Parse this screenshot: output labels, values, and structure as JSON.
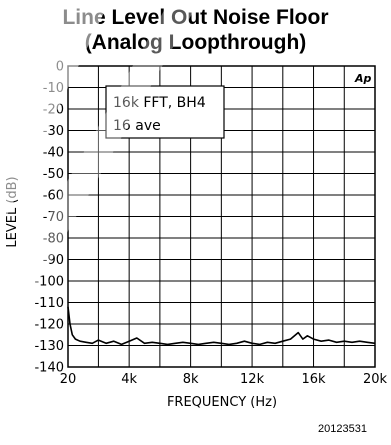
{
  "figure_id": "20123531",
  "chart_data": {
    "type": "line",
    "title": "Line Level Out Noise Floor",
    "subtitle": "(Analog Loopthrough)",
    "xlabel": "FREQUENCY (Hz)",
    "ylabel": "LEVEL (dB)",
    "xlim": [
      20,
      20000
    ],
    "ylim": [
      -140,
      0
    ],
    "x_ticks": [
      20,
      4000,
      8000,
      12000,
      16000,
      20000
    ],
    "x_tick_labels": [
      "20",
      "4k",
      "8k",
      "12k",
      "16k",
      "20k"
    ],
    "y_ticks": [
      0,
      -10,
      -20,
      -30,
      -40,
      -50,
      -60,
      -70,
      -80,
      -90,
      -100,
      -110,
      -120,
      -130,
      -140
    ],
    "y_tick_labels": [
      "0",
      "-10",
      "-20",
      "-30",
      "-40",
      "-50",
      "-60",
      "-70",
      "-80",
      "-90",
      "-100",
      "-110",
      "-120",
      "-130",
      "-140"
    ],
    "grid": true,
    "annotation_lines": [
      "16k FFT, BH4",
      "16 ave"
    ],
    "logo": "Ap",
    "line_color": "#000000",
    "series": [
      {
        "x": [
          20,
          150,
          300,
          500,
          800,
          1200,
          1600,
          2000,
          2500,
          3000,
          3500,
          4000,
          4500,
          5000,
          5500,
          6000,
          6500,
          7000,
          7500,
          8000,
          8500,
          9000,
          9500,
          10000,
          10500,
          11000,
          11500,
          12000,
          12500,
          13000,
          13500,
          14000,
          14500,
          15000,
          15300,
          15600,
          16000,
          16500,
          17000,
          17500,
          18000,
          18500,
          19000,
          19500,
          20000
        ],
        "y": [
          -112,
          -120,
          -125,
          -127,
          -128,
          -128.5,
          -129,
          -127.5,
          -129,
          -128,
          -129.5,
          -128,
          -126.5,
          -129,
          -128.5,
          -129,
          -129.5,
          -129,
          -128.5,
          -129,
          -129.5,
          -129,
          -128.5,
          -129,
          -129.5,
          -129,
          -128,
          -129,
          -129.5,
          -128.5,
          -129,
          -128,
          -127,
          -124,
          -127,
          -125.5,
          -127,
          -128,
          -127.5,
          -128.5,
          -128,
          -128.5,
          -128,
          -128.5,
          -129
        ]
      }
    ]
  }
}
